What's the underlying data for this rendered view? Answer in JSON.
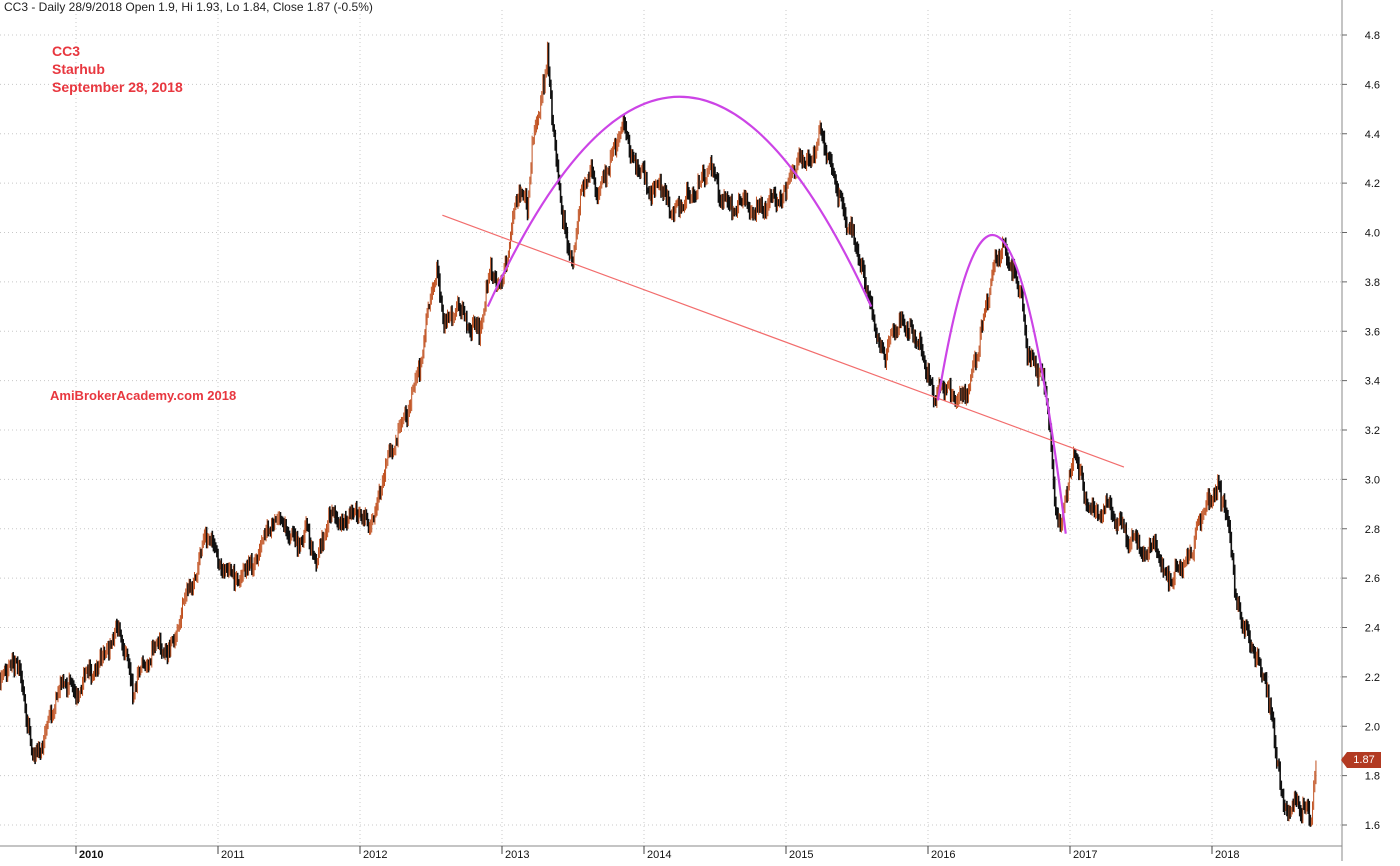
{
  "header": {
    "text": "CC3 - Daily 28/9/2018 Open 1.9, Hi 1.93, Lo 1.84, Close 1.87 (-0.5%)"
  },
  "annotations": {
    "ticker": "CC3",
    "company": "Starhub",
    "date": "September 28, 2018",
    "watermark": "AmiBrokerAcademy.com  2018",
    "last_price_tag": "1.87"
  },
  "colors": {
    "up_bar": "#c0501f",
    "down_bar": "#111111",
    "trendline": "#f26d6d",
    "pattern_arc": "#cc44e6",
    "grid": "#c8c8c8",
    "note_text": "#e8373f",
    "price_tag": "#b23a22"
  },
  "chart_data": {
    "type": "line",
    "style": "ohlc-bars",
    "x_axis": {
      "ticks": [
        "2010",
        "2011",
        "2012",
        "2013",
        "2014",
        "2015",
        "2016",
        "2017",
        "2018"
      ],
      "range": [
        2009.45,
        2018.85
      ]
    },
    "y_axis": {
      "ticks": [
        "1.6",
        "1.8",
        "2.0",
        "2.2",
        "2.4",
        "2.6",
        "2.8",
        "3.0",
        "3.2",
        "3.4",
        "3.6",
        "3.8",
        "4.0",
        "4.2",
        "4.4",
        "4.6",
        "4.8"
      ],
      "range": [
        1.56,
        4.84
      ],
      "side": "right"
    },
    "grid": true,
    "series": [
      {
        "values": [
          [
            2009.45,
            2.15
          ],
          [
            2009.55,
            2.28
          ],
          [
            2009.62,
            2.18
          ],
          [
            2009.68,
            1.93
          ],
          [
            2009.72,
            1.88
          ],
          [
            2009.78,
            1.95
          ],
          [
            2009.85,
            2.1
          ],
          [
            2009.92,
            2.18
          ],
          [
            2010.0,
            2.13
          ],
          [
            2010.1,
            2.22
          ],
          [
            2010.2,
            2.28
          ],
          [
            2010.28,
            2.4
          ],
          [
            2010.34,
            2.32
          ],
          [
            2010.4,
            2.14
          ],
          [
            2010.48,
            2.25
          ],
          [
            2010.58,
            2.33
          ],
          [
            2010.66,
            2.3
          ],
          [
            2010.75,
            2.48
          ],
          [
            2010.85,
            2.63
          ],
          [
            2010.92,
            2.78
          ],
          [
            2011.0,
            2.68
          ],
          [
            2011.1,
            2.6
          ],
          [
            2011.2,
            2.62
          ],
          [
            2011.3,
            2.72
          ],
          [
            2011.4,
            2.85
          ],
          [
            2011.48,
            2.79
          ],
          [
            2011.56,
            2.74
          ],
          [
            2011.62,
            2.8
          ],
          [
            2011.7,
            2.67
          ],
          [
            2011.78,
            2.85
          ],
          [
            2011.9,
            2.83
          ],
          [
            2012.0,
            2.88
          ],
          [
            2012.06,
            2.8
          ],
          [
            2012.12,
            2.9
          ],
          [
            2012.18,
            3.05
          ],
          [
            2012.26,
            3.18
          ],
          [
            2012.34,
            3.28
          ],
          [
            2012.42,
            3.45
          ],
          [
            2012.48,
            3.7
          ],
          [
            2012.54,
            3.85
          ],
          [
            2012.6,
            3.62
          ],
          [
            2012.68,
            3.7
          ],
          [
            2012.76,
            3.63
          ],
          [
            2012.84,
            3.6
          ],
          [
            2012.92,
            3.85
          ],
          [
            2013.0,
            3.78
          ],
          [
            2013.06,
            3.98
          ],
          [
            2013.12,
            4.18
          ],
          [
            2013.18,
            4.1
          ],
          [
            2013.22,
            4.4
          ],
          [
            2013.28,
            4.55
          ],
          [
            2013.32,
            4.72
          ],
          [
            2013.36,
            4.4
          ],
          [
            2013.42,
            4.1
          ],
          [
            2013.46,
            3.95
          ],
          [
            2013.5,
            3.9
          ],
          [
            2013.56,
            4.18
          ],
          [
            2013.62,
            4.25
          ],
          [
            2013.68,
            4.15
          ],
          [
            2013.74,
            4.25
          ],
          [
            2013.8,
            4.35
          ],
          [
            2013.86,
            4.45
          ],
          [
            2013.92,
            4.3
          ],
          [
            2013.98,
            4.25
          ],
          [
            2014.06,
            4.15
          ],
          [
            2014.12,
            4.2
          ],
          [
            2014.18,
            4.1
          ],
          [
            2014.24,
            4.1
          ],
          [
            2014.3,
            4.15
          ],
          [
            2014.38,
            4.18
          ],
          [
            2014.46,
            4.27
          ],
          [
            2014.54,
            4.15
          ],
          [
            2014.62,
            4.1
          ],
          [
            2014.72,
            4.12
          ],
          [
            2014.8,
            4.08
          ],
          [
            2014.88,
            4.12
          ],
          [
            2015.0,
            4.17
          ],
          [
            2015.06,
            4.25
          ],
          [
            2015.1,
            4.33
          ],
          [
            2015.16,
            4.28
          ],
          [
            2015.24,
            4.4
          ],
          [
            2015.3,
            4.3
          ],
          [
            2015.36,
            4.18
          ],
          [
            2015.42,
            4.05
          ],
          [
            2015.48,
            3.98
          ],
          [
            2015.54,
            3.85
          ],
          [
            2015.6,
            3.7
          ],
          [
            2015.64,
            3.55
          ],
          [
            2015.7,
            3.5
          ],
          [
            2015.76,
            3.6
          ],
          [
            2015.82,
            3.65
          ],
          [
            2015.88,
            3.6
          ],
          [
            2015.94,
            3.55
          ],
          [
            2016.0,
            3.42
          ],
          [
            2016.04,
            3.32
          ],
          [
            2016.1,
            3.38
          ],
          [
            2016.16,
            3.35
          ],
          [
            2016.24,
            3.32
          ],
          [
            2016.3,
            3.4
          ],
          [
            2016.36,
            3.55
          ],
          [
            2016.42,
            3.72
          ],
          [
            2016.48,
            3.9
          ],
          [
            2016.54,
            3.95
          ],
          [
            2016.6,
            3.85
          ],
          [
            2016.66,
            3.75
          ],
          [
            2016.7,
            3.5
          ],
          [
            2016.76,
            3.45
          ],
          [
            2016.82,
            3.4
          ],
          [
            2016.86,
            3.2
          ],
          [
            2016.9,
            2.85
          ],
          [
            2016.94,
            2.8
          ],
          [
            2016.98,
            2.95
          ],
          [
            2017.04,
            3.12
          ],
          [
            2017.1,
            2.95
          ],
          [
            2017.18,
            2.85
          ],
          [
            2017.26,
            2.9
          ],
          [
            2017.34,
            2.82
          ],
          [
            2017.42,
            2.75
          ],
          [
            2017.52,
            2.72
          ],
          [
            2017.62,
            2.72
          ],
          [
            2017.68,
            2.6
          ],
          [
            2017.74,
            2.62
          ],
          [
            2017.8,
            2.65
          ],
          [
            2017.86,
            2.7
          ],
          [
            2017.92,
            2.85
          ],
          [
            2017.98,
            2.92
          ],
          [
            2018.04,
            2.97
          ],
          [
            2018.08,
            2.9
          ],
          [
            2018.12,
            2.8
          ],
          [
            2018.16,
            2.55
          ],
          [
            2018.2,
            2.45
          ],
          [
            2018.26,
            2.35
          ],
          [
            2018.32,
            2.28
          ],
          [
            2018.36,
            2.2
          ],
          [
            2018.4,
            2.1
          ],
          [
            2018.44,
            1.95
          ],
          [
            2018.48,
            1.78
          ],
          [
            2018.52,
            1.65
          ],
          [
            2018.58,
            1.7
          ],
          [
            2018.64,
            1.66
          ],
          [
            2018.7,
            1.63
          ],
          [
            2018.74,
            1.87
          ]
        ]
      }
    ],
    "annotations": {
      "trendline": [
        [
          2012.58,
          4.07
        ],
        [
          2017.38,
          3.05
        ]
      ],
      "arc_main": [
        [
          2012.9,
          3.7
        ],
        [
          2014.25,
          4.55
        ],
        [
          2015.6,
          3.7
        ]
      ],
      "arc_right": [
        [
          2016.07,
          3.32
        ],
        [
          2016.52,
          3.97
        ],
        [
          2016.97,
          2.78
        ]
      ],
      "last_price": 1.87
    }
  }
}
